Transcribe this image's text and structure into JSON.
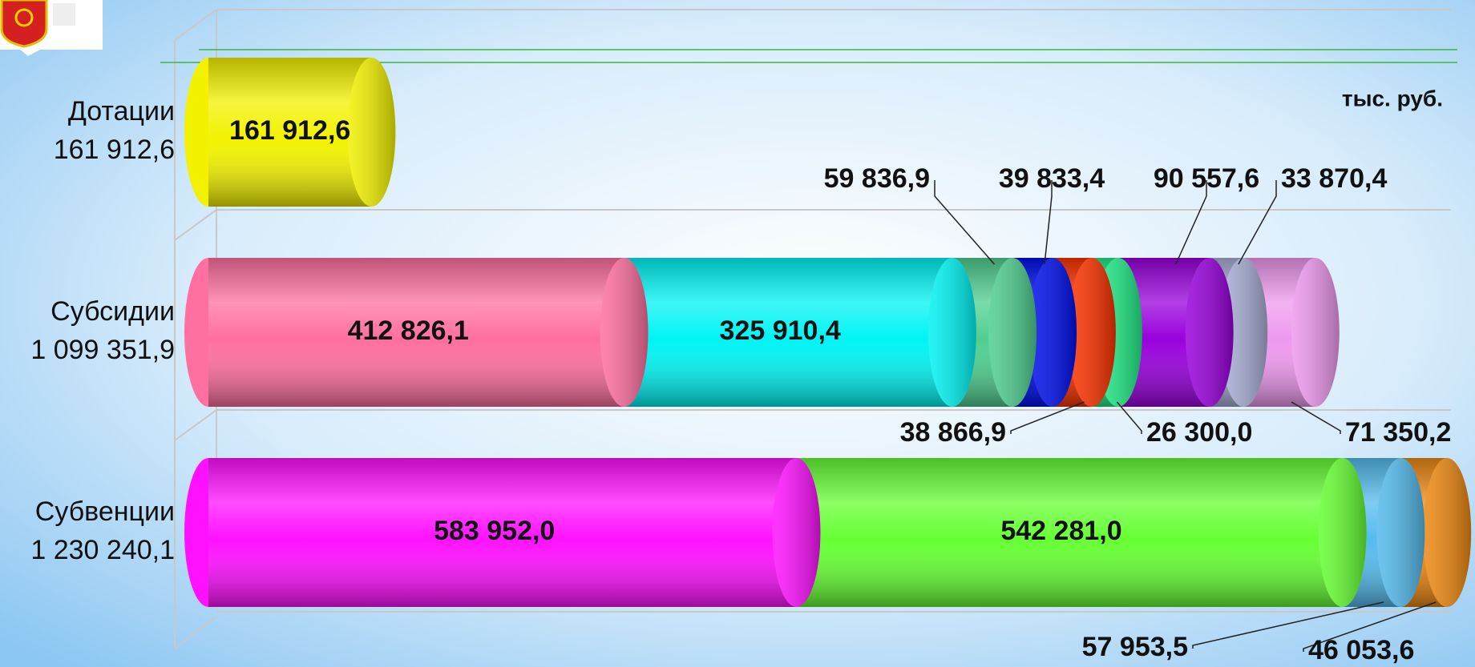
{
  "chart_data": {
    "type": "stacked_bar_horizontal",
    "unit_label": "тыс. руб.",
    "categories": [
      "Дотации",
      "Субсидии",
      "Субвенции"
    ],
    "category_totals": [
      {
        "value": 161912.6,
        "label": "161 912,6"
      },
      {
        "value": 1099351.9,
        "label": "1 099 351,9"
      },
      {
        "value": 1230240.1,
        "label": "1 230 240,1"
      }
    ],
    "xlim": [
      0,
      1250000
    ],
    "series": [
      {
        "color": "#f2f200",
        "values": [
          161912.6,
          null,
          null
        ],
        "value_labels": [
          "161 912,6",
          null,
          null
        ]
      },
      {
        "color": "#ff6fa0",
        "values": [
          null,
          412826.1,
          null
        ],
        "value_labels": [
          null,
          "412 826,1",
          null
        ]
      },
      {
        "color": "#00f4f4",
        "values": [
          null,
          325910.4,
          null
        ],
        "value_labels": [
          null,
          "325 910,4",
          null
        ]
      },
      {
        "color": "#4fcf90",
        "values": [
          null,
          59836.9,
          null
        ],
        "value_labels": [
          null,
          "59 836,9",
          null
        ]
      },
      {
        "color": "#0010ee",
        "values": [
          null,
          39833.4,
          null
        ],
        "value_labels": [
          null,
          "39 833,4",
          null
        ]
      },
      {
        "color": "#ff3300",
        "values": [
          null,
          38866.9,
          null
        ],
        "value_labels": [
          null,
          "38 866,9",
          null
        ]
      },
      {
        "color": "#22ee88",
        "values": [
          null,
          26300.0,
          null
        ],
        "value_labels": [
          null,
          "26 300,0",
          null
        ]
      },
      {
        "color": "#9900dd",
        "values": [
          null,
          90557.6,
          null
        ],
        "value_labels": [
          null,
          "90 557,6",
          null
        ]
      },
      {
        "color": "#aab0d8",
        "values": [
          null,
          33870.4,
          null
        ],
        "value_labels": [
          null,
          "33 870,4",
          null
        ]
      },
      {
        "color": "#ee99ee",
        "values": [
          null,
          71350.2,
          null
        ],
        "value_labels": [
          null,
          "71 350,2",
          null
        ]
      },
      {
        "color": "#ff11ff",
        "values": [
          null,
          null,
          583952.0
        ],
        "value_labels": [
          null,
          null,
          "583 952,0"
        ]
      },
      {
        "color": "#66ff33",
        "values": [
          null,
          null,
          542281.0
        ],
        "value_labels": [
          null,
          null,
          "542 281,0"
        ]
      },
      {
        "color": "#55bbee",
        "values": [
          null,
          null,
          57953.5
        ],
        "value_labels": [
          null,
          null,
          "57 953,5"
        ]
      },
      {
        "color": "#ee8811",
        "values": [
          null,
          null,
          46053.6
        ],
        "value_labels": [
          null,
          null,
          "46 053,6"
        ]
      }
    ]
  }
}
